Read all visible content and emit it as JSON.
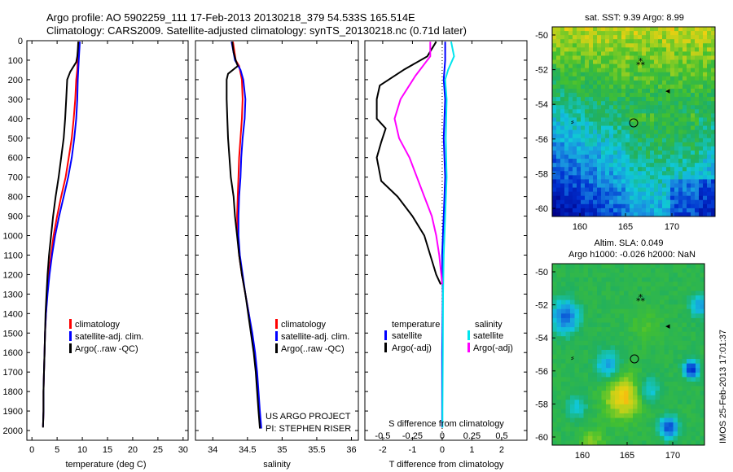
{
  "header": {
    "line1": "Argo profile: AO 5902259_111 17-Feb-2013 20130218_379 54.533S 165.514E",
    "line2": "Climatology: CARS2009. Satellite-adjusted climatology: synTS_20130218.nc (0.71d later)"
  },
  "colors": {
    "climatology": "#ff0000",
    "satellite": "#0000ff",
    "argo": "#000000",
    "sat_salinity": "#00e5ee",
    "argo_salinity": "#ff00ff"
  },
  "depth_axis": {
    "ticks": [
      "0",
      "100",
      "200",
      "300",
      "400",
      "500",
      "600",
      "700",
      "800",
      "900",
      "1000",
      "1100",
      "1200",
      "1300",
      "1400",
      "1500",
      "1600",
      "1700",
      "1800",
      "1900",
      "2000"
    ]
  },
  "chart_data": [
    {
      "id": "temperature",
      "type": "line",
      "xlabel": "temperature (deg C)",
      "xlim": [
        -1,
        31
      ],
      "ylim": [
        2050,
        0
      ],
      "xticks": [
        "0",
        "5",
        "10",
        "15",
        "20",
        "25",
        "30"
      ],
      "xtick_values": [
        0,
        5,
        10,
        15,
        20,
        25,
        30
      ],
      "legend": {
        "placement": "bottom-center",
        "entries": [
          "climatology",
          "satellite-adj. clim.",
          "Argo(..raw -QC)"
        ]
      },
      "series": [
        {
          "name": "climatology",
          "color": "#ff0000",
          "points": [
            [
              9.3,
              5
            ],
            [
              9.2,
              50
            ],
            [
              9.1,
              100
            ],
            [
              9,
              150
            ],
            [
              8.8,
              200
            ],
            [
              8.6,
              300
            ],
            [
              8.3,
              400
            ],
            [
              7.9,
              500
            ],
            [
              7.3,
              600
            ],
            [
              6.7,
              700
            ],
            [
              5.8,
              800
            ],
            [
              5,
              900
            ],
            [
              4.3,
              1000
            ],
            [
              3.8,
              1100
            ],
            [
              3.3,
              1200
            ],
            [
              3.0,
              1300
            ],
            [
              2.8,
              1400
            ],
            [
              2.6,
              1500
            ],
            [
              2.5,
              1600
            ],
            [
              2.4,
              1700
            ],
            [
              2.3,
              1800
            ],
            [
              2.3,
              1900
            ],
            [
              2.2,
              1980
            ]
          ]
        },
        {
          "name": "satellite-adj. clim.",
          "color": "#0000ff",
          "points": [
            [
              9.5,
              5
            ],
            [
              9.4,
              50
            ],
            [
              9.3,
              100
            ],
            [
              9.2,
              150
            ],
            [
              9.1,
              200
            ],
            [
              9,
              300
            ],
            [
              8.8,
              400
            ],
            [
              8.4,
              500
            ],
            [
              7.9,
              600
            ],
            [
              7.2,
              700
            ],
            [
              6.3,
              800
            ],
            [
              5.4,
              900
            ],
            [
              4.6,
              1000
            ],
            [
              4,
              1100
            ],
            [
              3.5,
              1200
            ],
            [
              3.1,
              1300
            ],
            [
              2.8,
              1400
            ],
            [
              2.6,
              1500
            ],
            [
              2.5,
              1600
            ],
            [
              2.4,
              1700
            ],
            [
              2.3,
              1800
            ],
            [
              2.3,
              1900
            ],
            [
              2.2,
              1980
            ]
          ]
        },
        {
          "name": "Argo(..raw -QC)",
          "color": "#000000",
          "points": [
            [
              9.2,
              5
            ],
            [
              9.1,
              50
            ],
            [
              9,
              80
            ],
            [
              8.8,
              110
            ],
            [
              7.6,
              160
            ],
            [
              7.0,
              200
            ],
            [
              6.8,
              300
            ],
            [
              6.6,
              400
            ],
            [
              6.3,
              500
            ],
            [
              5.8,
              600
            ],
            [
              5.3,
              700
            ],
            [
              4.7,
              800
            ],
            [
              4.2,
              900
            ],
            [
              3.8,
              1000
            ],
            [
              3.4,
              1100
            ],
            [
              3.1,
              1200
            ],
            [
              2.9,
              1300
            ],
            [
              2.7,
              1400
            ],
            [
              2.6,
              1500
            ],
            [
              2.5,
              1600
            ],
            [
              2.4,
              1700
            ],
            [
              2.3,
              1800
            ],
            [
              2.3,
              1900
            ],
            [
              2.2,
              1985
            ]
          ]
        }
      ]
    },
    {
      "id": "salinity",
      "type": "line",
      "xlabel": "salinity",
      "xlim": [
        33.75,
        36.1
      ],
      "ylim": [
        2050,
        0
      ],
      "xticks": [
        "34",
        "34.5",
        "35",
        "35.5",
        "36"
      ],
      "xtick_values": [
        34,
        34.5,
        35,
        35.5,
        36
      ],
      "legend": {
        "placement": "bottom-center",
        "entries": [
          "climatology",
          "satellite-adj. clim.",
          "Argo(..raw -QC)"
        ]
      },
      "annotations": [
        "US ARGO PROJECT",
        "PI: STEPHEN RISER"
      ],
      "series": [
        {
          "name": "climatology",
          "color": "#ff0000",
          "points": [
            [
              34.29,
              5
            ],
            [
              34.33,
              100
            ],
            [
              34.38,
              130
            ],
            [
              34.42,
              200
            ],
            [
              34.43,
              300
            ],
            [
              34.42,
              400
            ],
            [
              34.4,
              500
            ],
            [
              34.38,
              600
            ],
            [
              34.37,
              700
            ],
            [
              34.36,
              800
            ],
            [
              34.35,
              900
            ],
            [
              34.36,
              1000
            ],
            [
              34.38,
              1100
            ],
            [
              34.42,
              1200
            ],
            [
              34.47,
              1300
            ],
            [
              34.52,
              1400
            ],
            [
              34.56,
              1500
            ],
            [
              34.6,
              1600
            ],
            [
              34.63,
              1700
            ],
            [
              34.65,
              1800
            ],
            [
              34.67,
              1900
            ],
            [
              34.69,
              1990
            ]
          ]
        },
        {
          "name": "satellite-adj. clim.",
          "color": "#0000ff",
          "points": [
            [
              34.27,
              5
            ],
            [
              34.32,
              100
            ],
            [
              34.4,
              150
            ],
            [
              34.44,
              200
            ],
            [
              34.47,
              300
            ],
            [
              34.46,
              400
            ],
            [
              34.43,
              500
            ],
            [
              34.41,
              600
            ],
            [
              34.4,
              700
            ],
            [
              34.38,
              800
            ],
            [
              34.37,
              900
            ],
            [
              34.37,
              1000
            ],
            [
              34.39,
              1100
            ],
            [
              34.43,
              1200
            ],
            [
              34.47,
              1300
            ],
            [
              34.52,
              1400
            ],
            [
              34.57,
              1500
            ],
            [
              34.61,
              1600
            ],
            [
              34.64,
              1700
            ],
            [
              34.66,
              1800
            ],
            [
              34.68,
              1900
            ],
            [
              34.7,
              1990
            ]
          ]
        },
        {
          "name": "Argo(..raw -QC)",
          "color": "#000000",
          "points": [
            [
              34.28,
              5
            ],
            [
              34.3,
              60
            ],
            [
              34.33,
              100
            ],
            [
              34.36,
              130
            ],
            [
              34.22,
              170
            ],
            [
              34.2,
              200
            ],
            [
              34.2,
              300
            ],
            [
              34.21,
              400
            ],
            [
              34.22,
              500
            ],
            [
              34.24,
              600
            ],
            [
              34.26,
              700
            ],
            [
              34.3,
              800
            ],
            [
              34.32,
              900
            ],
            [
              34.35,
              1000
            ],
            [
              34.38,
              1100
            ],
            [
              34.42,
              1200
            ],
            [
              34.47,
              1300
            ],
            [
              34.51,
              1400
            ],
            [
              34.55,
              1500
            ],
            [
              34.59,
              1600
            ],
            [
              34.62,
              1700
            ],
            [
              34.64,
              1800
            ],
            [
              34.66,
              1900
            ],
            [
              34.68,
              1990
            ]
          ]
        }
      ]
    },
    {
      "id": "difference",
      "type": "line",
      "xlabel": "T difference from climatology",
      "xlabel_top": "S difference from climatology",
      "xlim": [
        -2.6,
        2.85
      ],
      "ylim": [
        2050,
        0
      ],
      "xticks": [
        "-2",
        "-1",
        "0",
        "1",
        "2"
      ],
      "xtick_values": [
        -2,
        -1,
        0,
        1,
        2
      ],
      "sticks": [
        "-0.5",
        "-0.25",
        "0",
        "0.25",
        "0.5"
      ],
      "stick_values": [
        -2,
        -1,
        0,
        1,
        2
      ],
      "legend": {
        "placement": "bottom",
        "entries": [
          "temperature",
          "satellite",
          "Argo(-adj)",
          "salinity",
          "satellite",
          "Argo(-adj)"
        ]
      },
      "series": [
        {
          "name": "temperature satellite",
          "color": "#0000ff",
          "points": [
            [
              0.1,
              5
            ],
            [
              0.1,
              100
            ],
            [
              0.05,
              200
            ],
            [
              0.1,
              300
            ],
            [
              0.05,
              500
            ],
            [
              0.1,
              700
            ],
            [
              0.05,
              900
            ],
            [
              0,
              1100
            ],
            [
              0.02,
              1300
            ],
            [
              0,
              1600
            ],
            [
              0,
              1900
            ],
            [
              0,
              1985
            ]
          ]
        },
        {
          "name": "temperature Argo(-adj)",
          "color": "#000000",
          "points": [
            [
              -0.2,
              5
            ],
            [
              -0.5,
              80
            ],
            [
              -1.3,
              150
            ],
            [
              -2.1,
              230
            ],
            [
              -2.2,
              300
            ],
            [
              -2.2,
              400
            ],
            [
              -1.9,
              450
            ],
            [
              -2.05,
              520
            ],
            [
              -2.2,
              600
            ],
            [
              -2.05,
              720
            ],
            [
              -1.5,
              800
            ],
            [
              -1.0,
              900
            ],
            [
              -0.6,
              1000
            ],
            [
              -0.4,
              1100
            ],
            [
              -0.2,
              1200
            ],
            [
              -0.05,
              1250
            ]
          ]
        },
        {
          "name": "salinity satellite",
          "color": "#00e5ee",
          "points": [
            [
              0.3,
              5
            ],
            [
              0.4,
              80
            ],
            [
              0.2,
              150
            ],
            [
              0.1,
              200
            ],
            [
              0.15,
              300
            ],
            [
              0.12,
              500
            ],
            [
              0.15,
              700
            ],
            [
              0.1,
              900
            ],
            [
              0.05,
              1100
            ],
            [
              0.03,
              1300
            ],
            [
              0.02,
              1600
            ],
            [
              0.01,
              1900
            ],
            [
              0.01,
              1985
            ]
          ]
        },
        {
          "name": "salinity Argo(-adj)",
          "color": "#ff00ff",
          "points": [
            [
              -0.4,
              5
            ],
            [
              -0.4,
              80
            ],
            [
              -0.9,
              180
            ],
            [
              -1.4,
              300
            ],
            [
              -1.6,
              400
            ],
            [
              -1.45,
              500
            ],
            [
              -1.1,
              600
            ],
            [
              -0.85,
              700
            ],
            [
              -0.6,
              800
            ],
            [
              -0.35,
              900
            ],
            [
              -0.2,
              1000
            ],
            [
              -0.1,
              1100
            ],
            [
              -0.03,
              1200
            ],
            [
              0,
              1250
            ]
          ]
        }
      ]
    }
  ],
  "maps": [
    {
      "title": "sat. SST: 9.39 Argo: 8.99",
      "yticks": [
        "-50",
        "-52",
        "-54",
        "-56",
        "-58",
        "-60"
      ],
      "xticks": [
        "160",
        "165",
        "170"
      ]
    },
    {
      "title_line1": "Altim. SLA: 0.049",
      "title_line2": "Argo h1000: -0.026 h2000: NaN",
      "yticks": [
        "-50",
        "-52",
        "-54",
        "-56",
        "-58",
        "-60"
      ],
      "xticks": [
        "160",
        "165",
        "170"
      ],
      "side_label": "IMOS 25-Feb-2013 17:01:37"
    }
  ]
}
